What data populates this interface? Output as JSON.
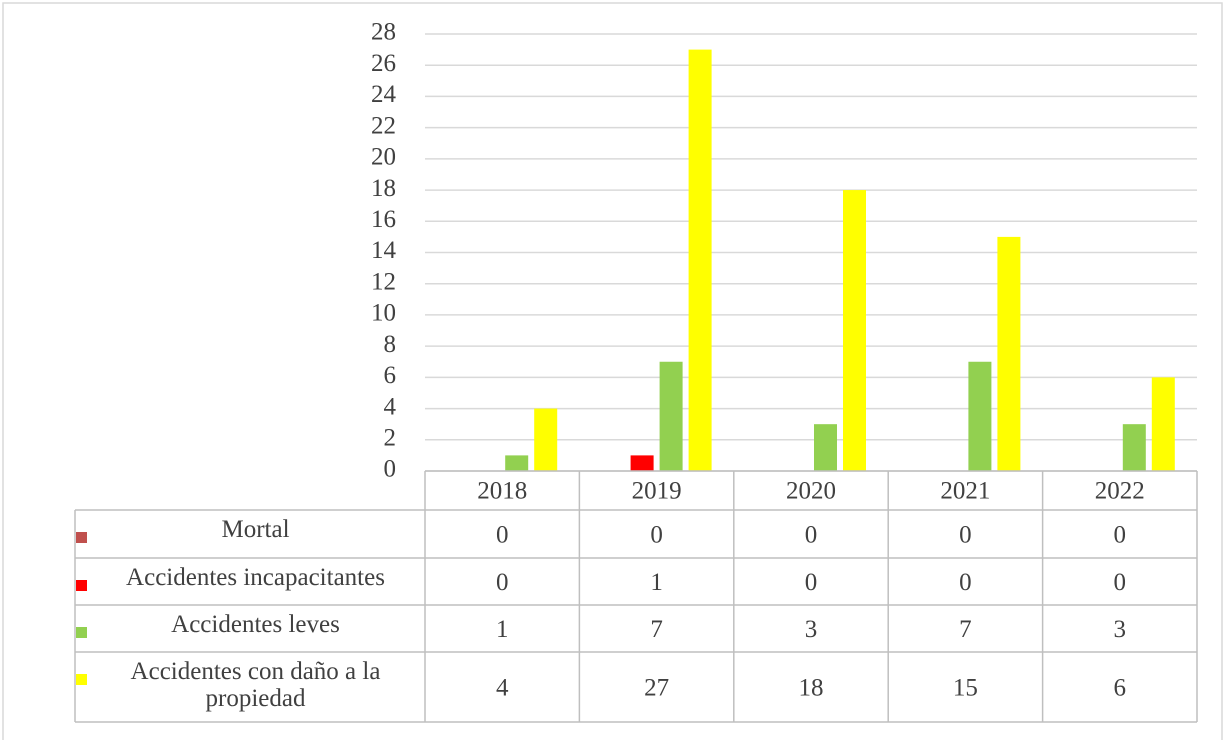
{
  "chart_data": {
    "type": "bar",
    "categories": [
      "2018",
      "2019",
      "2020",
      "2021",
      "2022"
    ],
    "series": [
      {
        "name": "Mortal",
        "color": "#c0504d",
        "values": [
          0,
          0,
          0,
          0,
          0
        ]
      },
      {
        "name": "Accidentes incapacitantes",
        "color": "#ff0000",
        "values": [
          0,
          1,
          0,
          0,
          0
        ]
      },
      {
        "name": "Accidentes leves",
        "color": "#92d050",
        "values": [
          1,
          7,
          3,
          7,
          3
        ]
      },
      {
        "name": "Accidentes con daño a la propiedad",
        "color": "#ffff00",
        "values": [
          4,
          27,
          18,
          15,
          6
        ]
      }
    ],
    "ylim": [
      0,
      28
    ],
    "yticks": [
      0,
      2,
      4,
      6,
      8,
      10,
      12,
      14,
      16,
      18,
      20,
      22,
      24,
      26,
      28
    ],
    "grid": true,
    "data_table": true
  }
}
